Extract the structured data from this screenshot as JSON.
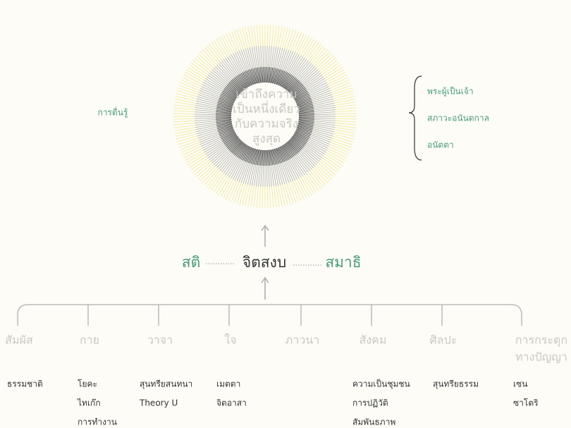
{
  "center": {
    "lines": [
      "เข้าถึงความ",
      "เป็นหนึ่งเดียว",
      "กับความจริง",
      "สูงสุด"
    ]
  },
  "left_label": "การตื่นรู้",
  "right_items": [
    "พระผู้เป็นเจ้า",
    "สภาวะอนันตกาล",
    "อนัตตา"
  ],
  "middle": {
    "left": "สติ",
    "center": "จิตสงบ",
    "right": "สมาธิ"
  },
  "branches": [
    {
      "label": [
        "สัมผัส"
      ],
      "items": [
        "ธรรมชาติ"
      ]
    },
    {
      "label": [
        "กาย"
      ],
      "items": [
        "โยคะ",
        "ไทเก๊ก",
        "การทำงาน"
      ]
    },
    {
      "label": [
        "วาจา"
      ],
      "items": [
        "สุนทรียสนทนา",
        "Theory U"
      ]
    },
    {
      "label": [
        "ใจ"
      ],
      "items": [
        "เมตตา",
        "จิตอาสา"
      ]
    },
    {
      "label": [
        "ภาวนา"
      ],
      "items": []
    },
    {
      "label": [
        "สังคม"
      ],
      "items": [
        "ความเป็นชุมชน",
        "การปฏิวัติ",
        "สัมพันธภาพ"
      ]
    },
    {
      "label": [
        "ศิลปะ"
      ],
      "items": [
        "สุนทรียธรรม"
      ]
    },
    {
      "label": [
        "การกระตุก",
        "ทางปัญญา"
      ],
      "items": [
        "เซน",
        "ซาโตริ"
      ]
    }
  ]
}
